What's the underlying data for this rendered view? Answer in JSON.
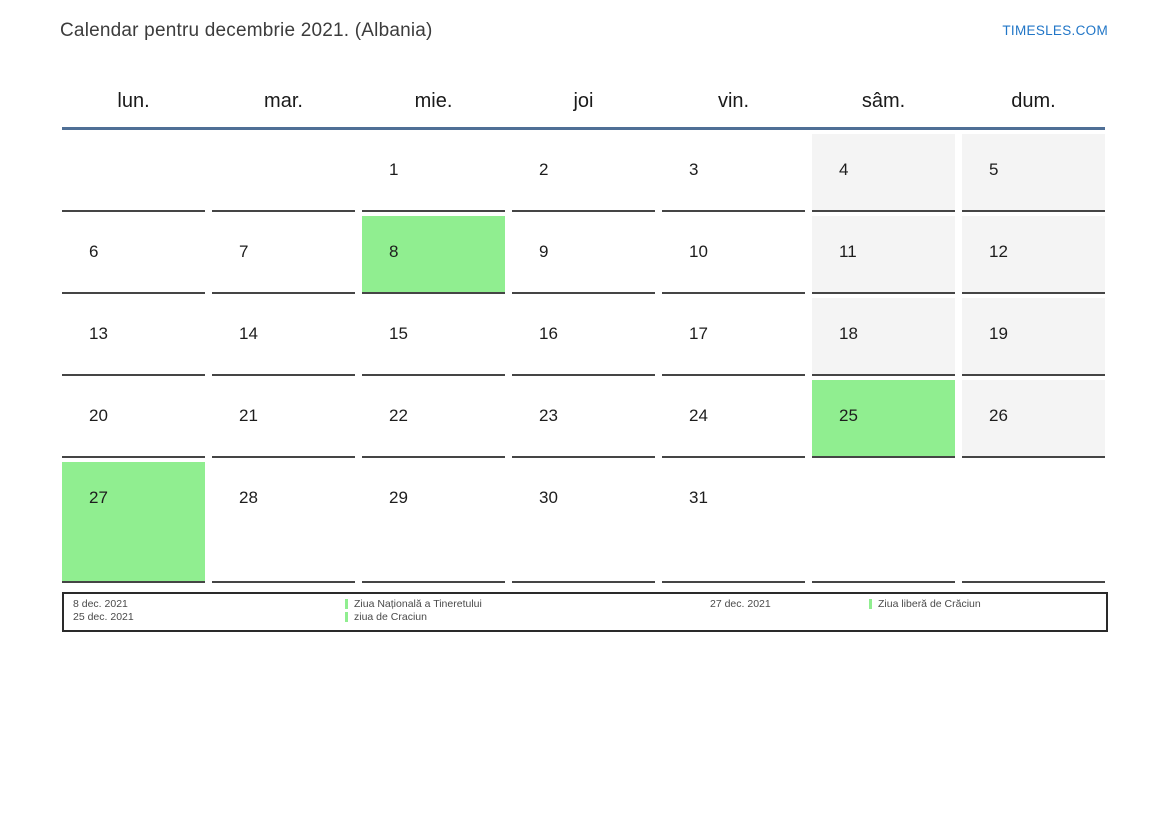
{
  "header": {
    "title": "Calendar pentru decembrie 2021. (Albania)",
    "site_link": "TIMESLES.COM"
  },
  "calendar": {
    "weekday_headers": [
      "lun.",
      "mar.",
      "mie.",
      "joi",
      "vin.",
      "sâm.",
      "dum."
    ],
    "weeks": [
      [
        {
          "day": "",
          "weekend": false,
          "holiday": false
        },
        {
          "day": "",
          "weekend": false,
          "holiday": false
        },
        {
          "day": "1",
          "weekend": false,
          "holiday": false
        },
        {
          "day": "2",
          "weekend": false,
          "holiday": false
        },
        {
          "day": "3",
          "weekend": false,
          "holiday": false
        },
        {
          "day": "4",
          "weekend": true,
          "holiday": false
        },
        {
          "day": "5",
          "weekend": true,
          "holiday": false
        }
      ],
      [
        {
          "day": "6",
          "weekend": false,
          "holiday": false
        },
        {
          "day": "7",
          "weekend": false,
          "holiday": false
        },
        {
          "day": "8",
          "weekend": false,
          "holiday": true
        },
        {
          "day": "9",
          "weekend": false,
          "holiday": false
        },
        {
          "day": "10",
          "weekend": false,
          "holiday": false
        },
        {
          "day": "11",
          "weekend": true,
          "holiday": false
        },
        {
          "day": "12",
          "weekend": true,
          "holiday": false
        }
      ],
      [
        {
          "day": "13",
          "weekend": false,
          "holiday": false
        },
        {
          "day": "14",
          "weekend": false,
          "holiday": false
        },
        {
          "day": "15",
          "weekend": false,
          "holiday": false
        },
        {
          "day": "16",
          "weekend": false,
          "holiday": false
        },
        {
          "day": "17",
          "weekend": false,
          "holiday": false
        },
        {
          "day": "18",
          "weekend": true,
          "holiday": false
        },
        {
          "day": "19",
          "weekend": true,
          "holiday": false
        }
      ],
      [
        {
          "day": "20",
          "weekend": false,
          "holiday": false
        },
        {
          "day": "21",
          "weekend": false,
          "holiday": false
        },
        {
          "day": "22",
          "weekend": false,
          "holiday": false
        },
        {
          "day": "23",
          "weekend": false,
          "holiday": false
        },
        {
          "day": "24",
          "weekend": false,
          "holiday": false
        },
        {
          "day": "25",
          "weekend": true,
          "holiday": true
        },
        {
          "day": "26",
          "weekend": true,
          "holiday": false
        }
      ],
      [
        {
          "day": "27",
          "weekend": false,
          "holiday": true
        },
        {
          "day": "28",
          "weekend": false,
          "holiday": false
        },
        {
          "day": "29",
          "weekend": false,
          "holiday": false
        },
        {
          "day": "30",
          "weekend": false,
          "holiday": false
        },
        {
          "day": "31",
          "weekend": false,
          "holiday": false
        },
        {
          "day": "",
          "weekend": false,
          "holiday": false
        },
        {
          "day": "",
          "weekend": false,
          "holiday": false
        }
      ]
    ]
  },
  "legend": {
    "groups": [
      {
        "dates": [
          "8 dec. 2021",
          "25 dec. 2021"
        ],
        "holidays": [
          "Ziua Națională a Tineretului",
          "ziua de Craciun"
        ]
      },
      {
        "dates": [
          "27 dec. 2021"
        ],
        "holidays": [
          "Ziua liberă de Crăciun"
        ]
      }
    ]
  },
  "colors": {
    "holiday_green": "#90ee90",
    "weekend_gray": "#f4f4f4",
    "header_rule_blue": "#4f6f96",
    "link_blue": "#2176c7",
    "cell_border": "#454545"
  }
}
